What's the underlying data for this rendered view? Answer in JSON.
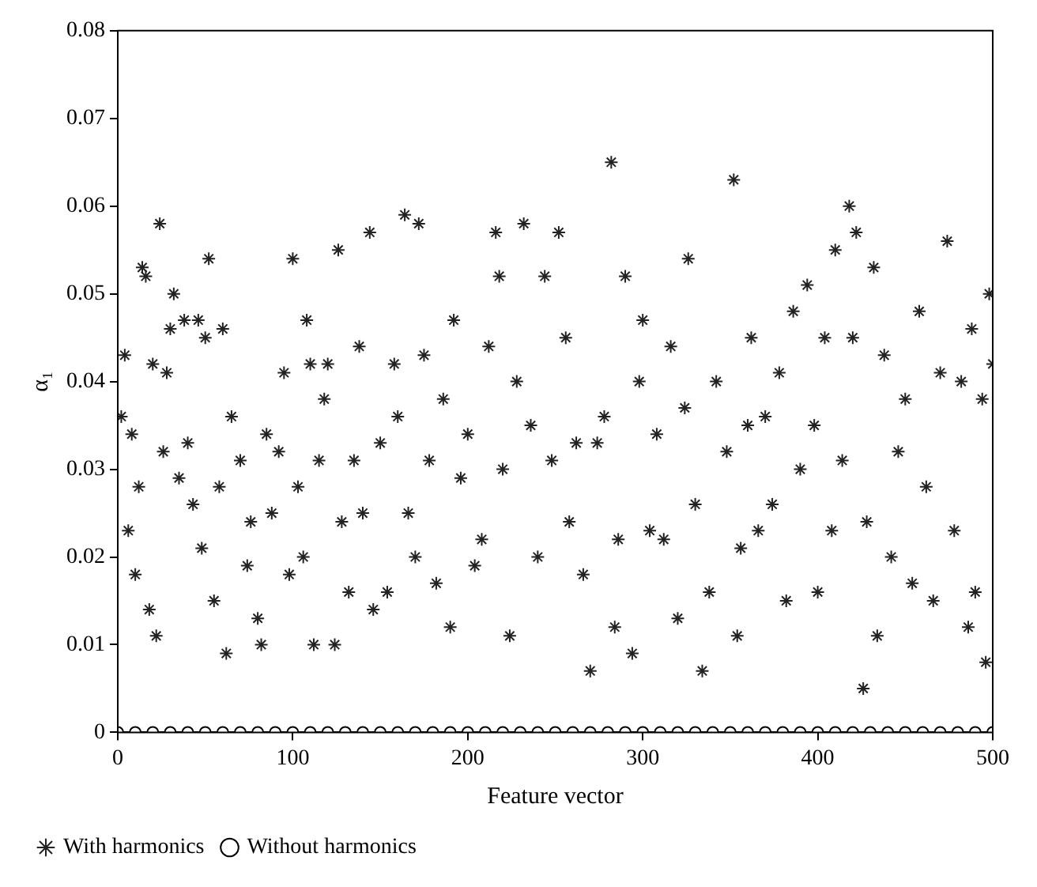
{
  "chart_data": {
    "type": "scatter",
    "xlabel": "Feature vector",
    "ylabel": "α₁",
    "xlim": [
      0,
      500
    ],
    "ylim": [
      0,
      0.08
    ],
    "xticks": [
      0,
      100,
      200,
      300,
      400,
      500
    ],
    "yticks": [
      0,
      0.01,
      0.02,
      0.03,
      0.04,
      0.05,
      0.06,
      0.07,
      0.08
    ],
    "grid": false,
    "legend": "bottom",
    "series": [
      {
        "name": "With harmonics",
        "color": "#222222",
        "marker": "cross",
        "x": [
          2,
          4,
          6,
          8,
          10,
          12,
          14,
          16,
          18,
          20,
          22,
          24,
          26,
          28,
          30,
          32,
          35,
          38,
          40,
          43,
          46,
          48,
          50,
          52,
          55,
          58,
          60,
          62,
          65,
          70,
          74,
          76,
          80,
          82,
          85,
          88,
          92,
          95,
          98,
          100,
          103,
          106,
          108,
          110,
          112,
          115,
          118,
          120,
          124,
          126,
          128,
          132,
          135,
          138,
          140,
          144,
          146,
          150,
          154,
          158,
          160,
          164,
          166,
          170,
          172,
          175,
          178,
          182,
          186,
          190,
          192,
          196,
          200,
          204,
          208,
          212,
          216,
          218,
          220,
          224,
          228,
          232,
          236,
          240,
          244,
          248,
          252,
          256,
          258,
          262,
          266,
          270,
          274,
          278,
          282,
          284,
          286,
          290,
          294,
          298,
          300,
          304,
          308,
          312,
          316,
          320,
          324,
          326,
          330,
          334,
          338,
          342,
          348,
          352,
          354,
          356,
          360,
          362,
          366,
          370,
          374,
          378,
          382,
          386,
          390,
          394,
          398,
          400,
          404,
          408,
          410,
          414,
          418,
          420,
          422,
          426,
          428,
          432,
          434,
          438,
          442,
          446,
          450,
          454,
          458,
          462,
          466,
          470,
          474,
          478,
          482,
          486,
          488,
          490,
          494,
          496,
          498,
          500
        ],
        "values": [
          0.036,
          0.043,
          0.023,
          0.034,
          0.018,
          0.028,
          0.053,
          0.052,
          0.014,
          0.042,
          0.011,
          0.058,
          0.032,
          0.041,
          0.046,
          0.05,
          0.029,
          0.047,
          0.033,
          0.026,
          0.047,
          0.021,
          0.045,
          0.054,
          0.015,
          0.028,
          0.046,
          0.009,
          0.036,
          0.031,
          0.019,
          0.024,
          0.013,
          0.01,
          0.034,
          0.025,
          0.032,
          0.041,
          0.018,
          0.054,
          0.028,
          0.02,
          0.047,
          0.042,
          0.01,
          0.031,
          0.038,
          0.042,
          0.01,
          0.055,
          0.024,
          0.016,
          0.031,
          0.044,
          0.025,
          0.057,
          0.014,
          0.033,
          0.016,
          0.042,
          0.036,
          0.059,
          0.025,
          0.02,
          0.058,
          0.043,
          0.031,
          0.017,
          0.038,
          0.012,
          0.047,
          0.029,
          0.034,
          0.019,
          0.022,
          0.044,
          0.057,
          0.052,
          0.03,
          0.011,
          0.04,
          0.058,
          0.035,
          0.02,
          0.052,
          0.031,
          0.057,
          0.045,
          0.024,
          0.033,
          0.018,
          0.007,
          0.033,
          0.036,
          0.065,
          0.012,
          0.022,
          0.052,
          0.009,
          0.04,
          0.047,
          0.023,
          0.034,
          0.022,
          0.044,
          0.013,
          0.037,
          0.054,
          0.026,
          0.007,
          0.016,
          0.04,
          0.032,
          0.063,
          0.011,
          0.021,
          0.035,
          0.045,
          0.023,
          0.036,
          0.026,
          0.041,
          0.015,
          0.048,
          0.03,
          0.051,
          0.035,
          0.016,
          0.045,
          0.023,
          0.055,
          0.031,
          0.06,
          0.045,
          0.057,
          0.005,
          0.024,
          0.053,
          0.011,
          0.043,
          0.02,
          0.032,
          0.038,
          0.017,
          0.048,
          0.028,
          0.015,
          0.041,
          0.056,
          0.023,
          0.04,
          0.012,
          0.046,
          0.016,
          0.038,
          0.008,
          0.05,
          0.042
        ]
      },
      {
        "name": "Without harmonics",
        "color": "#000000",
        "marker": "circle",
        "x": [
          0,
          10,
          20,
          30,
          40,
          50,
          60,
          70,
          80,
          90,
          100,
          110,
          120,
          130,
          140,
          150,
          160,
          170,
          180,
          190,
          200,
          210,
          220,
          230,
          240,
          250,
          260,
          270,
          280,
          290,
          300,
          310,
          320,
          330,
          340,
          350,
          360,
          370,
          380,
          390,
          400,
          410,
          420,
          430,
          440,
          450,
          460,
          470,
          480,
          490,
          500
        ],
        "values": [
          0,
          0,
          0,
          0,
          0,
          0,
          0,
          0,
          0,
          0,
          0,
          0,
          0,
          0,
          0,
          0,
          0,
          0,
          0,
          0,
          0,
          0,
          0,
          0,
          0,
          0,
          0,
          0,
          0,
          0,
          0,
          0,
          0,
          0,
          0,
          0,
          0,
          0,
          0,
          0,
          0,
          0,
          0,
          0,
          0,
          0,
          0,
          0,
          0,
          0,
          0
        ]
      }
    ]
  }
}
